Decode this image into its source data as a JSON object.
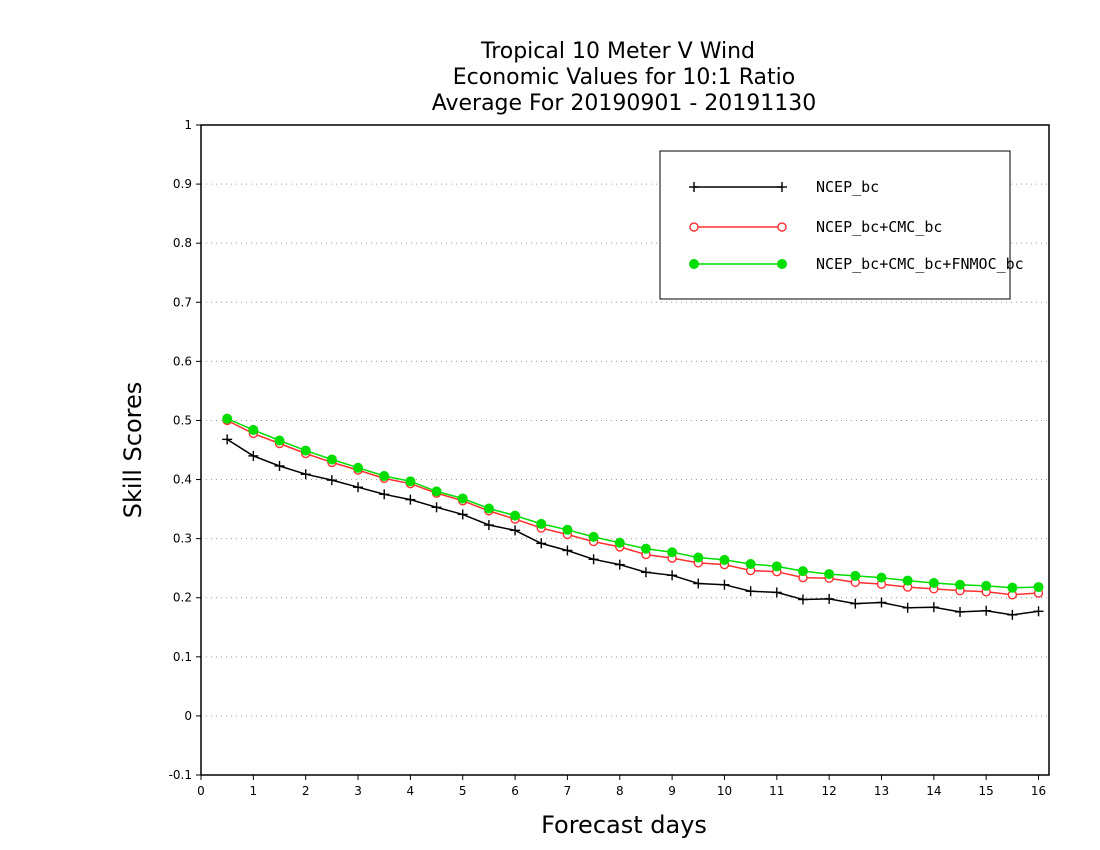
{
  "chart_data": {
    "type": "line",
    "title": [
      "Tropical 10 Meter V Wind",
      "Economic Values for 10:1 Ratio",
      "Average For 20190901 - 20191130"
    ],
    "xlabel": "Forecast days",
    "ylabel": "Skill Scores",
    "xlim": [
      0,
      16.2
    ],
    "ylim": [
      -0.1,
      1
    ],
    "xticks": [
      "0",
      "1",
      "2",
      "3",
      "4",
      "5",
      "6",
      "7",
      "8",
      "9",
      "10",
      "11",
      "12",
      "13",
      "14",
      "15",
      "16"
    ],
    "yticks": [
      "-0.1",
      "0",
      "0.1",
      "0.2",
      "0.3",
      "0.4",
      "0.5",
      "0.6",
      "0.7",
      "0.8",
      "0.9",
      "1"
    ],
    "grid": "horizontal dotted",
    "legend_position": "top-right",
    "x": [
      0.5,
      1,
      1.5,
      2,
      2.5,
      3,
      3.5,
      4,
      4.5,
      5,
      5.5,
      6,
      6.5,
      7,
      7.5,
      8,
      8.5,
      9,
      9.5,
      10,
      10.5,
      11,
      11.5,
      12,
      12.5,
      13,
      13.5,
      14,
      14.5,
      15,
      15.5,
      16
    ],
    "series": [
      {
        "name": "NCEP_bc",
        "color": "#000000",
        "marker": "plus",
        "values": [
          0.468,
          0.44,
          0.423,
          0.409,
          0.399,
          0.387,
          0.375,
          0.366,
          0.353,
          0.341,
          0.323,
          0.314,
          0.292,
          0.28,
          0.265,
          0.256,
          0.243,
          0.238,
          0.224,
          0.222,
          0.211,
          0.209,
          0.197,
          0.198,
          0.19,
          0.192,
          0.183,
          0.184,
          0.176,
          0.178,
          0.171,
          0.177
        ]
      },
      {
        "name": "NCEP_bc+CMC_bc",
        "color": "#ff3030",
        "marker": "open-circle",
        "values": [
          0.5,
          0.478,
          0.461,
          0.444,
          0.429,
          0.416,
          0.402,
          0.393,
          0.377,
          0.364,
          0.347,
          0.333,
          0.318,
          0.307,
          0.295,
          0.286,
          0.273,
          0.267,
          0.259,
          0.256,
          0.246,
          0.244,
          0.234,
          0.233,
          0.226,
          0.223,
          0.218,
          0.215,
          0.212,
          0.21,
          0.205,
          0.208
        ]
      },
      {
        "name": "NCEP_bc+CMC_bc+FNMOC_bc",
        "color": "#00dd00",
        "marker": "filled-circle",
        "values": [
          0.503,
          0.484,
          0.466,
          0.449,
          0.434,
          0.42,
          0.406,
          0.397,
          0.38,
          0.368,
          0.351,
          0.339,
          0.325,
          0.315,
          0.303,
          0.293,
          0.283,
          0.277,
          0.268,
          0.264,
          0.257,
          0.253,
          0.245,
          0.24,
          0.237,
          0.234,
          0.229,
          0.225,
          0.222,
          0.22,
          0.217,
          0.218
        ]
      }
    ]
  }
}
